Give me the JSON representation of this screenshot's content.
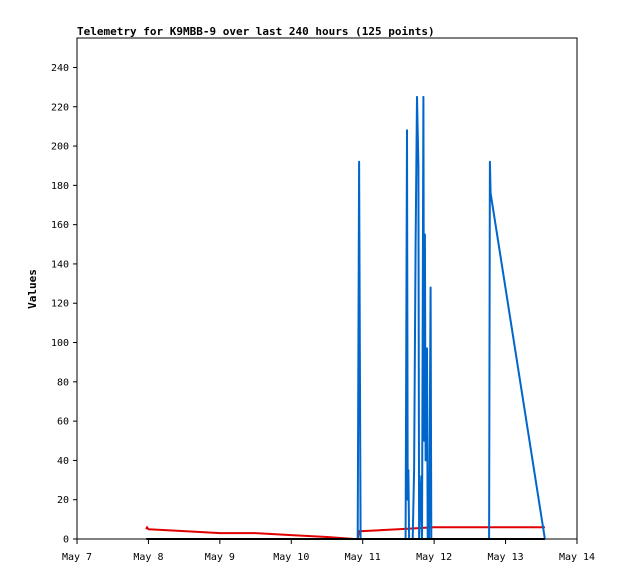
{
  "chart_data": {
    "type": "line",
    "title": "Telemetry for K9MBB-9 over last 240 hours (125 points)",
    "xlabel": "",
    "ylabel": "Values",
    "x_range_days": [
      7,
      14
    ],
    "x_ticks": [
      {
        "day": 7,
        "label": "May 7"
      },
      {
        "day": 8,
        "label": "May 8"
      },
      {
        "day": 9,
        "label": "May 9"
      },
      {
        "day": 10,
        "label": "May 10"
      },
      {
        "day": 11,
        "label": "May 11"
      },
      {
        "day": 12,
        "label": "May 12"
      },
      {
        "day": 13,
        "label": "May 13"
      },
      {
        "day": 14,
        "label": "May 14"
      }
    ],
    "ylim": [
      0,
      255
    ],
    "y_ticks": [
      0,
      20,
      40,
      60,
      80,
      100,
      120,
      140,
      160,
      180,
      200,
      220,
      240
    ],
    "grid": false,
    "series": [
      {
        "color": "#e00000",
        "points": [
          [
            7.97,
            5
          ],
          [
            7.98,
            6
          ],
          [
            8.0,
            5
          ],
          [
            8.5,
            4
          ],
          [
            9.0,
            3
          ],
          [
            9.5,
            3
          ],
          [
            10.0,
            2
          ],
          [
            10.5,
            1
          ],
          [
            10.88,
            0
          ],
          [
            10.93,
            0
          ],
          [
            10.95,
            4
          ],
          [
            11.0,
            4
          ],
          [
            11.5,
            5
          ],
          [
            12.0,
            6
          ],
          [
            12.5,
            6
          ],
          [
            13.0,
            6
          ],
          [
            13.55,
            6
          ]
        ]
      },
      {
        "color": "#0066cc",
        "points": [
          [
            10.93,
            0
          ],
          [
            10.95,
            192
          ],
          [
            10.97,
            0
          ],
          [
            11.6,
            0
          ],
          [
            11.62,
            208
          ],
          [
            11.63,
            20
          ],
          [
            11.64,
            35
          ],
          [
            11.65,
            0
          ],
          [
            11.7,
            0
          ],
          [
            11.72,
            35
          ],
          [
            11.74,
            150
          ],
          [
            11.76,
            225
          ],
          [
            11.78,
            190
          ],
          [
            11.79,
            0
          ],
          [
            11.82,
            32
          ],
          [
            11.83,
            0
          ],
          [
            11.85,
            225
          ],
          [
            11.86,
            50
          ],
          [
            11.87,
            155
          ],
          [
            11.88,
            40
          ],
          [
            11.9,
            97
          ],
          [
            11.91,
            0
          ],
          [
            11.93,
            0
          ],
          [
            11.95,
            128
          ],
          [
            11.96,
            0
          ],
          [
            12.77,
            0
          ],
          [
            12.78,
            192
          ],
          [
            12.79,
            176
          ],
          [
            13.55,
            0
          ]
        ]
      },
      {
        "color": "#000000",
        "points": [
          [
            7.97,
            0
          ],
          [
            13.55,
            0
          ]
        ]
      }
    ]
  }
}
